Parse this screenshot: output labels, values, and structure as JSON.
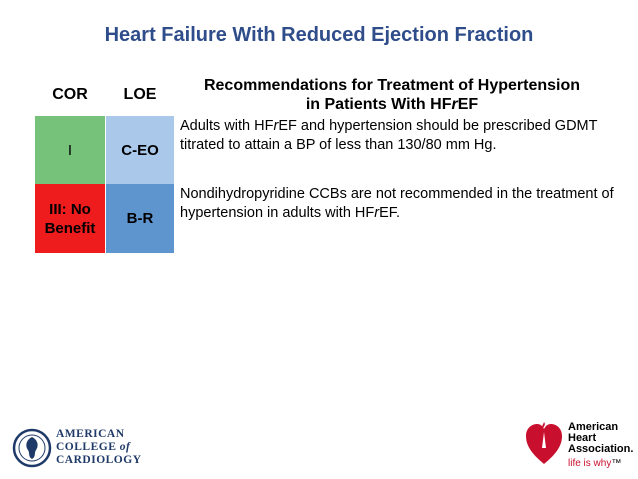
{
  "slide": {
    "title": "Heart Failure With Reduced Ejection Fraction"
  },
  "table": {
    "cor_header": "COR",
    "loe_header": "LOE",
    "rec_header_line1": "Recommendations for Treatment of Hypertension",
    "rec_header_line2_pre": "in Patients With HF",
    "rec_header_line2_em": "r",
    "rec_header_line2_post": "EF",
    "rows": [
      {
        "cor": "I",
        "loe": "C-EO",
        "cor_color": "#77c27a",
        "loe_color": "#a9c8ea",
        "text_pre": "Adults with HF",
        "text_em": "r",
        "text_post": "EF and hypertension should be prescribed GDMT titrated to attain a BP of less than 130/80 mm Hg."
      },
      {
        "cor_line1": "III: No",
        "cor_line2": "Benefit",
        "loe": "B-R",
        "cor_color": "#ee1c1c",
        "loe_color": "#5f95cf",
        "text_pre": "Nondihydropyridine CCBs are not recommended in the treatment of hypertension in adults with HF",
        "text_em": "r",
        "text_post": "EF."
      }
    ]
  },
  "logos": {
    "acc_line1": "AMERICAN",
    "acc_line2a": "COLLEGE ",
    "acc_line2b": "of",
    "acc_line3": "CARDIOLOGY",
    "aha_line1": "American",
    "aha_line2": "Heart",
    "aha_line3": "Association.",
    "aha_tag_a": "life is why",
    "aha_tag_b": "™"
  }
}
